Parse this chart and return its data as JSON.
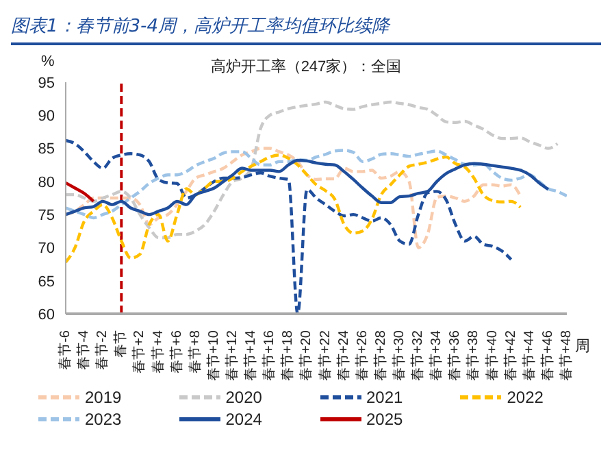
{
  "chart_data": {
    "type": "line",
    "title": "图表1：春节前3-4周，高炉开工率均值环比续降",
    "subtitle": "高炉开工率（247家）：全国",
    "ylabel": "%",
    "xlabel": "周",
    "categories": [
      "春节-6",
      null,
      "春节-4",
      null,
      "春节-2",
      null,
      "春节",
      null,
      "春节+2",
      null,
      "春节+4",
      null,
      "春节+6",
      null,
      "春节+8",
      null,
      "春节+10",
      null,
      "春节+12",
      null,
      "春节+14",
      null,
      "春节+16",
      null,
      "春节+18",
      null,
      "春节+20",
      null,
      "春节+22",
      null,
      "春节+24",
      null,
      "春节+26",
      null,
      "春节+28",
      null,
      "春节+30",
      null,
      "春节+32",
      null,
      "春节+34",
      null,
      "春节+36",
      null,
      "春节+38",
      null,
      "春节+40",
      null,
      "春节+42",
      null,
      "春节+44",
      null,
      "春节+46",
      null,
      "春节+48"
    ],
    "ylim": [
      60,
      95
    ],
    "yticks": [
      60,
      65,
      70,
      75,
      80,
      85,
      90,
      95
    ],
    "grid": false,
    "legend": "bottom",
    "marker": "none",
    "ref_lines": [
      {
        "axis": "x",
        "value": "春节",
        "color": "#c00000",
        "line_style": "dashed"
      }
    ],
    "series": [
      {
        "name": "2019",
        "color": "#f8cbad",
        "line_style": "dashed",
        "values": [
          75,
          75.5,
          76.5,
          77.5,
          77.5,
          77.5,
          77.5,
          77.5,
          76.5,
          73.5,
          74.5,
          75,
          76.5,
          78.5,
          80.5,
          81,
          81.5,
          82,
          83,
          84,
          84.5,
          85,
          85,
          84.5,
          84,
          83,
          81,
          80.3,
          80.4,
          80.4,
          82,
          81.5,
          81.5,
          81.7,
          80.5,
          80.8,
          81.5,
          80,
          70,
          72,
          77.6,
          77.8,
          77.5,
          77,
          77.8,
          79.5,
          79.5,
          79.3,
          79.5,
          77.8,
          null,
          null,
          null,
          null,
          null
        ]
      },
      {
        "name": "2020",
        "color": "#c9c9c9",
        "line_style": "dashed",
        "values": [
          78,
          78,
          77.5,
          77,
          77.5,
          78,
          78.5,
          77.5,
          75,
          73,
          71.5,
          71.5,
          72,
          72,
          72.5,
          73.5,
          75.5,
          78,
          80,
          80.5,
          82,
          88,
          90,
          90.5,
          91,
          91.3,
          91.5,
          91.7,
          92,
          91.5,
          91,
          90.9,
          91.3,
          91.6,
          91.8,
          92,
          91.8,
          91.6,
          91.2,
          90.9,
          90,
          89,
          88.9,
          89.1,
          88.5,
          87.9,
          87,
          86.5,
          86.5,
          86.6,
          86,
          85.5,
          85,
          85.7,
          null
        ]
      },
      {
        "name": "2021",
        "color": "#1f4e9c",
        "line_style": "dashed",
        "values": [
          86.2,
          85.7,
          84.5,
          83,
          82,
          83.5,
          84,
          84.2,
          84,
          83,
          80.3,
          79.8,
          79.7,
          77.5,
          78,
          79,
          80,
          80.5,
          80.5,
          80.6,
          81,
          81.3,
          80.8,
          80.5,
          80.3,
          60,
          78.8,
          77.5,
          76.5,
          75.5,
          74.8,
          75,
          74.5,
          74,
          74.5,
          73.5,
          71,
          70.5,
          75,
          78.3,
          78.5,
          77.2,
          73.5,
          71,
          71.7,
          70.5,
          70.2,
          69.5,
          68.2,
          null,
          null,
          null,
          null,
          null,
          null
        ]
      },
      {
        "name": "2022",
        "color": "#ffc000",
        "line_style": "dashed",
        "values": [
          67.8,
          70,
          74,
          75.5,
          76.5,
          74.5,
          71,
          68.4,
          69,
          73.5,
          75,
          71,
          75,
          78.9,
          78,
          79,
          80,
          80,
          80.5,
          81.5,
          82.3,
          83,
          83.7,
          84,
          83.5,
          82.5,
          81,
          79.5,
          78.6,
          77.3,
          73.5,
          72.2,
          72.5,
          74.3,
          78,
          79.5,
          81,
          82.3,
          82.6,
          82.9,
          83.4,
          83.7,
          82.7,
          82.2,
          80.5,
          78,
          77.1,
          76.9,
          77,
          76.1,
          null,
          null,
          null,
          null,
          null
        ]
      },
      {
        "name": "2023",
        "color": "#9dc3e6",
        "line_style": "dashed",
        "values": [
          76,
          75.5,
          75,
          74.5,
          75,
          75.5,
          76.5,
          77.5,
          78.5,
          79.7,
          80.5,
          81,
          81,
          81.5,
          82.4,
          83,
          83.5,
          84.3,
          84.5,
          84.5,
          83.5,
          82.5,
          82.5,
          83,
          83,
          83.3,
          83.2,
          83.7,
          84.1,
          84.6,
          84.7,
          84.4,
          83,
          83.4,
          84.1,
          84.2,
          84,
          83.8,
          84.1,
          84.4,
          84.6,
          84,
          83.3,
          82.6,
          82.5,
          82.7,
          81.5,
          80.5,
          80.2,
          80.5,
          81,
          80,
          78.9,
          78.5,
          77.8
        ]
      },
      {
        "name": "2024",
        "color": "#1f4e9c",
        "line_style": "solid",
        "values": [
          75,
          75.5,
          76,
          76.2,
          77,
          76.5,
          77,
          76,
          75.5,
          75,
          75.5,
          76,
          77,
          76.5,
          78,
          78.5,
          79,
          80,
          81,
          82,
          81.7,
          81.7,
          81.7,
          81.5,
          82.5,
          83.2,
          83.1,
          82.8,
          82.6,
          82.5,
          81.5,
          80.3,
          79,
          77.8,
          76.8,
          76.8,
          77.7,
          77.8,
          78.2,
          78.5,
          80,
          81.2,
          81.9,
          82.5,
          82.7,
          82.6,
          82.4,
          82.2,
          82,
          81.7,
          81,
          79.8,
          78.8,
          null,
          null
        ]
      },
      {
        "name": "2025",
        "color": "#c00000",
        "line_style": "solid",
        "values": [
          79.8,
          79,
          78.2,
          77,
          null,
          null,
          null,
          null,
          null,
          null,
          null,
          null,
          null,
          null,
          null,
          null,
          null,
          null,
          null,
          null,
          null,
          null,
          null,
          null,
          null,
          null,
          null,
          null,
          null,
          null,
          null,
          null,
          null,
          null,
          null,
          null,
          null,
          null,
          null,
          null,
          null,
          null,
          null,
          null,
          null,
          null,
          null,
          null,
          null,
          null,
          null,
          null,
          null,
          null,
          null
        ]
      }
    ]
  }
}
